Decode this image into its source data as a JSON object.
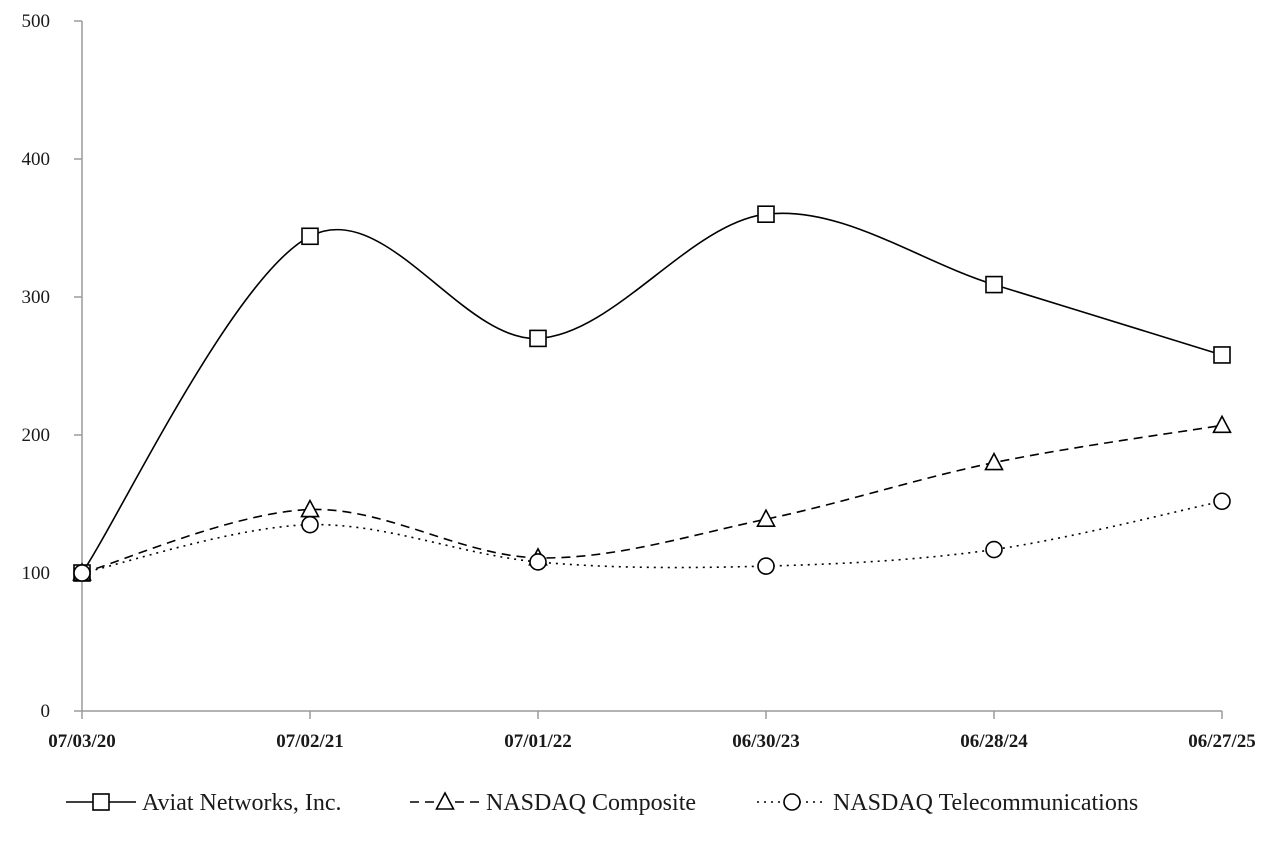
{
  "chart_data": {
    "type": "line",
    "title": "",
    "xlabel": "",
    "ylabel": "",
    "x": [
      "07/03/20",
      "07/02/21",
      "07/01/22",
      "06/30/23",
      "06/28/24",
      "06/27/25"
    ],
    "ylim": [
      0,
      500
    ],
    "y_ticks": [
      0,
      100,
      200,
      300,
      400,
      500
    ],
    "grid": false,
    "legend_position": "bottom",
    "series": [
      {
        "name": "Aviat Networks, Inc.",
        "values": [
          100,
          344,
          270,
          360,
          309,
          258
        ],
        "line_style": "solid",
        "marker": "square",
        "color": "#000000"
      },
      {
        "name": "NASDAQ Composite",
        "values": [
          100,
          146,
          111,
          139,
          180,
          207
        ],
        "line_style": "dashed",
        "marker": "triangle",
        "color": "#000000"
      },
      {
        "name": "NASDAQ Telecommunications",
        "values": [
          100,
          135,
          108,
          105,
          117,
          152
        ],
        "line_style": "dotted",
        "marker": "circle",
        "color": "#000000"
      }
    ]
  }
}
